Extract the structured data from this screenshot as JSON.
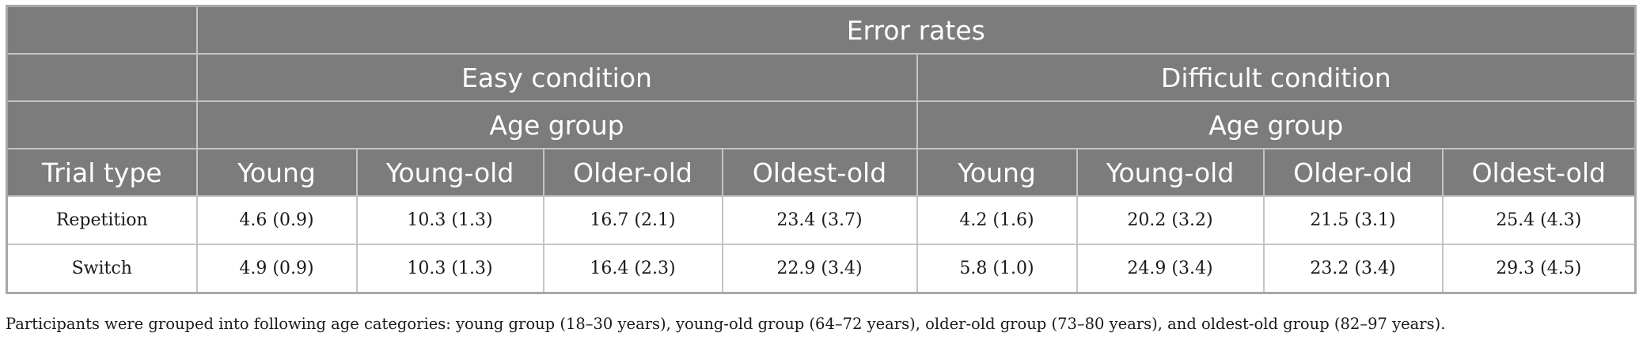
{
  "header": {
    "error_rates": "Error rates",
    "easy_condition": "Easy condition",
    "difficult_condition": "Difficult condition",
    "age_group_easy": "Age group",
    "age_group_difficult": "Age group",
    "trial_type": "Trial type",
    "columns": [
      "Young",
      "Young-old",
      "Older-old",
      "Oldest-old",
      "Young",
      "Young-old",
      "Older-old",
      "Oldest-old"
    ]
  },
  "rows": [
    {
      "label": "Repetition",
      "cells": [
        "4.6 (0.9)",
        "10.3 (1.3)",
        "16.7 (2.1)",
        "23.4 (3.7)",
        "4.2 (1.6)",
        "20.2 (3.2)",
        "21.5 (3.1)",
        "25.4 (4.3)"
      ]
    },
    {
      "label": "Switch",
      "cells": [
        "4.9 (0.9)",
        "10.3 (1.3)",
        "16.4 (2.3)",
        "22.9 (3.4)",
        "5.8 (1.0)",
        "24.9 (3.4)",
        "23.2 (3.4)",
        "29.3 (4.5)"
      ]
    }
  ],
  "footnote": "Participants were grouped into following age categories: young group (18–30 years), young-old group (64–72 years), older-old group (73–80 years), and oldest-old group (82–97 years).",
  "colors": {
    "header_bg": "#7c7c7c",
    "header_text": "#ffffff",
    "grid": "#c4c4c4"
  }
}
